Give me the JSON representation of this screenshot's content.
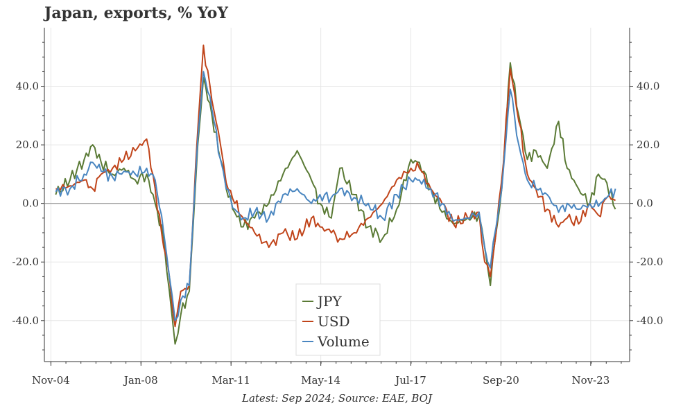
{
  "colors": {
    "jpy": "#5a7a35",
    "usd": "#c0441a",
    "volume": "#4a86c0",
    "zero_line": "#999999",
    "grid": "#e6e6e6"
  },
  "chart_data": {
    "type": "line",
    "title": "Japan, exports, % YoY",
    "caption": "Latest: Sep 2024; Source: EAE, BOJ",
    "xlabel": "",
    "ylabel": "",
    "xlim": [
      2004.6,
      2025.2
    ],
    "ylim": [
      -54,
      60
    ],
    "yticks": [
      -40,
      -20,
      0,
      20,
      40
    ],
    "ytick_labels": [
      "-40.0",
      "-20.0",
      "0.0",
      "20.0",
      "40.0"
    ],
    "xticks": [
      2004.83,
      2008.0,
      2011.17,
      2014.33,
      2017.5,
      2020.67,
      2023.83
    ],
    "xtick_labels": [
      "Nov-04",
      "Jan-08",
      "Mar-11",
      "May-14",
      "Jul-17",
      "Sep-20",
      "Nov-23"
    ],
    "legend_position": "lower-center",
    "series": [
      {
        "name": "JPY",
        "color": "#5a7a35",
        "x": [
          2005.0,
          2005.5,
          2006.0,
          2006.3,
          2006.6,
          2007.0,
          2007.4,
          2007.8,
          2008.2,
          2008.5,
          2008.8,
          2009.0,
          2009.2,
          2009.4,
          2009.7,
          2010.0,
          2010.2,
          2010.5,
          2010.8,
          2011.0,
          2011.3,
          2011.6,
          2012.0,
          2012.5,
          2013.0,
          2013.5,
          2014.0,
          2014.3,
          2014.7,
          2015.0,
          2015.5,
          2016.0,
          2016.5,
          2017.0,
          2017.5,
          2017.8,
          2018.2,
          2018.6,
          2019.0,
          2019.5,
          2019.9,
          2020.1,
          2020.3,
          2020.5,
          2020.7,
          2021.0,
          2021.3,
          2021.6,
          2021.9,
          2022.3,
          2022.7,
          2023.0,
          2023.4,
          2023.8,
          2024.1,
          2024.4,
          2024.7
        ],
        "y": [
          3,
          8,
          15,
          20,
          14,
          10,
          12,
          8,
          10,
          0,
          -12,
          -30,
          -48,
          -38,
          -30,
          20,
          43,
          30,
          15,
          5,
          -3,
          -8,
          -5,
          0,
          10,
          18,
          8,
          0,
          -5,
          12,
          3,
          -8,
          -12,
          -2,
          15,
          14,
          5,
          -3,
          -7,
          -5,
          -4,
          -15,
          -28,
          -10,
          5,
          48,
          30,
          15,
          18,
          12,
          28,
          12,
          5,
          0,
          10,
          7,
          -2
        ]
      },
      {
        "name": "USD",
        "color": "#c0441a",
        "x": [
          2005.0,
          2005.5,
          2006.0,
          2006.3,
          2006.6,
          2007.0,
          2007.4,
          2007.8,
          2008.2,
          2008.5,
          2008.8,
          2009.0,
          2009.2,
          2009.4,
          2009.7,
          2010.0,
          2010.2,
          2010.5,
          2010.8,
          2011.0,
          2011.3,
          2011.6,
          2012.0,
          2012.5,
          2013.0,
          2013.5,
          2014.0,
          2014.3,
          2014.7,
          2015.0,
          2015.5,
          2016.0,
          2016.5,
          2017.0,
          2017.5,
          2017.8,
          2018.2,
          2018.6,
          2019.0,
          2019.5,
          2019.9,
          2020.1,
          2020.3,
          2020.5,
          2020.7,
          2021.0,
          2021.3,
          2021.6,
          2021.9,
          2022.3,
          2022.7,
          2023.0,
          2023.4,
          2023.8,
          2024.1,
          2024.4,
          2024.7
        ],
        "y": [
          5,
          6,
          8,
          5,
          10,
          12,
          15,
          18,
          22,
          5,
          -15,
          -25,
          -42,
          -30,
          -28,
          25,
          54,
          35,
          20,
          7,
          0,
          -5,
          -10,
          -15,
          -10,
          -12,
          -5,
          -8,
          -10,
          -12,
          -10,
          -5,
          0,
          8,
          12,
          12,
          5,
          0,
          -7,
          -5,
          -3,
          -20,
          -25,
          -10,
          8,
          46,
          28,
          10,
          5,
          -2,
          -8,
          -5,
          -7,
          0,
          -4,
          2,
          1
        ]
      },
      {
        "name": "Volume",
        "color": "#4a86c0",
        "x": [
          2005.0,
          2005.5,
          2006.0,
          2006.3,
          2006.6,
          2007.0,
          2007.4,
          2007.8,
          2008.2,
          2008.5,
          2008.8,
          2009.0,
          2009.2,
          2009.4,
          2009.7,
          2010.0,
          2010.2,
          2010.5,
          2010.8,
          2011.0,
          2011.3,
          2011.6,
          2012.0,
          2012.5,
          2013.0,
          2013.5,
          2014.0,
          2014.3,
          2014.7,
          2015.0,
          2015.5,
          2016.0,
          2016.5,
          2017.0,
          2017.5,
          2017.8,
          2018.2,
          2018.6,
          2019.0,
          2019.5,
          2019.9,
          2020.1,
          2020.3,
          2020.5,
          2020.7,
          2021.0,
          2021.3,
          2021.6,
          2021.9,
          2022.3,
          2022.7,
          2023.0,
          2023.4,
          2023.8,
          2024.1,
          2024.4,
          2024.7
        ],
        "y": [
          4,
          5,
          10,
          14,
          11,
          9,
          11,
          10,
          12,
          8,
          -10,
          -25,
          -40,
          -33,
          -28,
          22,
          45,
          32,
          15,
          5,
          -2,
          -5,
          -3,
          -5,
          3,
          5,
          0,
          3,
          2,
          5,
          2,
          0,
          -5,
          3,
          8,
          8,
          5,
          0,
          -6,
          -5,
          -3,
          -15,
          -22,
          -8,
          5,
          39,
          20,
          8,
          5,
          3,
          -3,
          0,
          -2,
          0,
          -1,
          2,
          5
        ]
      }
    ]
  }
}
